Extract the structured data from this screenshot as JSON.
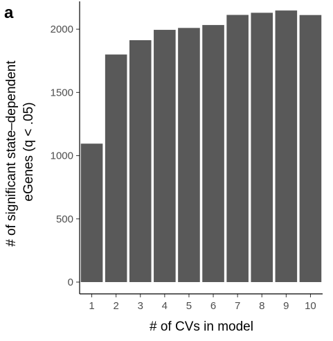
{
  "panel_label": "a",
  "chart_data": {
    "type": "bar",
    "categories": [
      "1",
      "2",
      "3",
      "4",
      "5",
      "6",
      "7",
      "8",
      "9",
      "10"
    ],
    "values": [
      1095,
      1800,
      1913,
      1995,
      2010,
      2033,
      2113,
      2130,
      2148,
      2112
    ],
    "xlabel": "# of CVs in model",
    "ylabel": [
      "# of significant state–dependent",
      "eGenes (q < .05)"
    ],
    "ylim": [
      0,
      2220
    ],
    "yticks": [
      0,
      500,
      1000,
      1500,
      2000
    ],
    "bar_color": "#595959",
    "grid": false,
    "legend": "none"
  }
}
